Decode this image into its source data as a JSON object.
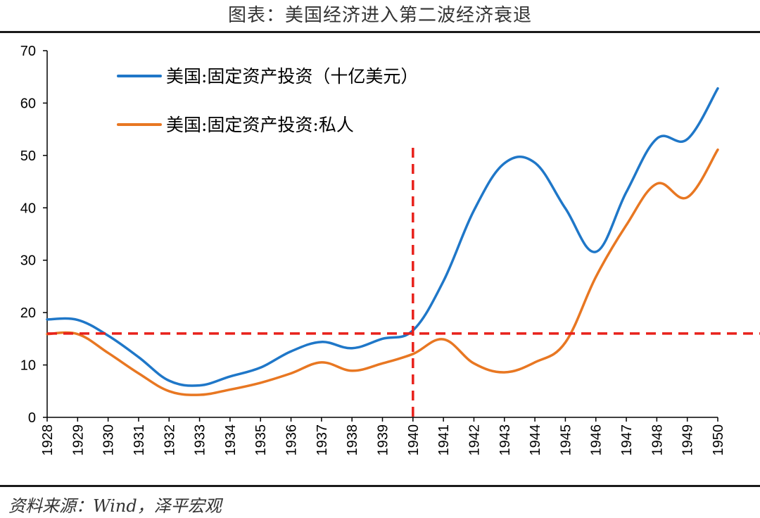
{
  "page": {
    "title": "图表：美国经济进入第二波经济衰退",
    "source": "资料来源：Wind，泽平宏观"
  },
  "chart_data": {
    "type": "line",
    "title": "图表：美国经济进入第二波经济衰退",
    "xlabel": "",
    "ylabel": "",
    "x": [
      1928,
      1929,
      1930,
      1931,
      1932,
      1933,
      1934,
      1935,
      1936,
      1937,
      1938,
      1939,
      1940,
      1941,
      1942,
      1943,
      1944,
      1945,
      1946,
      1947,
      1948,
      1949,
      1950
    ],
    "categories": [
      "1928",
      "1929",
      "1930",
      "1931",
      "1932",
      "1933",
      "1934",
      "1935",
      "1936",
      "1937",
      "1938",
      "1939",
      "1940",
      "1941",
      "1942",
      "1943",
      "1944",
      "1945",
      "1946",
      "1947",
      "1948",
      "1949",
      "1950"
    ],
    "ylim": [
      0,
      70
    ],
    "yticks": [
      0,
      10,
      20,
      30,
      40,
      50,
      60,
      70
    ],
    "grid": false,
    "legend_position": "top-left",
    "series": [
      {
        "name": "美国:固定资产投资（十亿美元）",
        "color": "#1F77C8",
        "values": [
          18.7,
          18.6,
          15.6,
          11.5,
          7.0,
          6.1,
          7.8,
          9.5,
          12.6,
          14.4,
          13.2,
          15.0,
          16.6,
          26.0,
          39.5,
          48.5,
          48.6,
          39.9,
          31.6,
          43.0,
          53.2,
          53.1,
          62.8
        ]
      },
      {
        "name": "美国:固定资产投资:私人",
        "color": "#E87722",
        "values": [
          15.9,
          15.9,
          12.3,
          8.4,
          5.0,
          4.3,
          5.3,
          6.6,
          8.4,
          10.5,
          8.9,
          10.3,
          12.1,
          14.9,
          10.3,
          8.6,
          10.5,
          14.3,
          26.8,
          36.7,
          44.6,
          42.0,
          51.1
        ]
      }
    ],
    "reference_lines": {
      "color": "#E8211B",
      "horizontal_y": 16,
      "vertical_x": 1940
    }
  }
}
